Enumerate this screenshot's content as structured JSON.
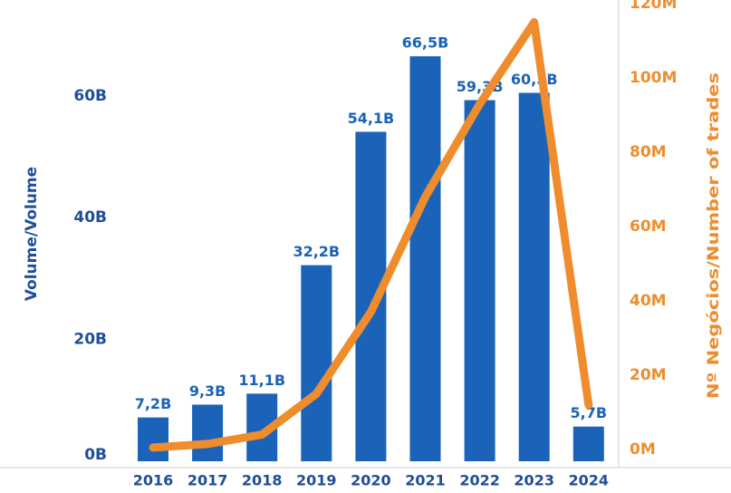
{
  "chart_data": {
    "type": "bar",
    "categories": [
      "2016",
      "2017",
      "2018",
      "2019",
      "2020",
      "2021",
      "2022",
      "2023",
      "2024"
    ],
    "series": [
      {
        "kind": "bar",
        "axis": "left",
        "values": [
          7.2,
          9.3,
          11.1,
          32.2,
          54.1,
          66.5,
          59.3,
          60.5,
          5.7
        ],
        "labels": [
          "7,2B",
          "9,3B",
          "11,1B",
          "32,2B",
          "54,1B",
          "66,5B",
          "59,3B",
          "60,5B",
          "5,7B"
        ],
        "unit": "B",
        "color": "#1a63b8"
      },
      {
        "kind": "line",
        "axis": "right",
        "values": [
          0.5,
          1.5,
          4,
          15,
          37,
          68,
          93,
          115,
          12
        ],
        "unit": "M",
        "color": "#ef8d2e"
      }
    ],
    "y_left": {
      "label": "Volume/Volume",
      "range": [
        0,
        72
      ],
      "ticks": [
        0,
        20,
        40,
        60
      ],
      "tick_labels": [
        "0B",
        "20B",
        "40B",
        "60B"
      ]
    },
    "y_right": {
      "label": "Nº Negócios/Number of trades",
      "range": [
        -3,
        121
      ],
      "ticks": [
        0,
        20,
        40,
        60,
        80,
        100,
        120
      ],
      "tick_labels": [
        "0M",
        "20M",
        "40M",
        "60M",
        "80M",
        "100M",
        "120M"
      ]
    },
    "grid": false,
    "legend": "none"
  },
  "colors": {
    "bar": "#1a63b8",
    "line": "#ef8d2e",
    "left_axis_text": "#1e4e9a",
    "right_axis_text": "#ef8d2e",
    "axis_line": "#cfcfcf"
  }
}
